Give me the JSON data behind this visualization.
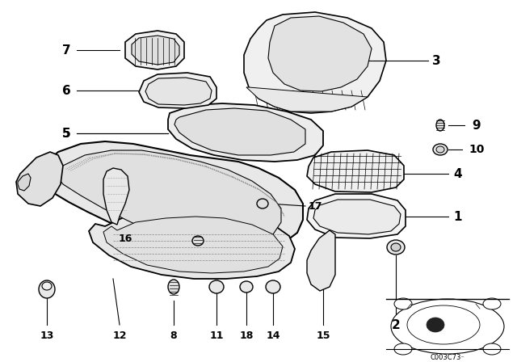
{
  "background_color": "#ffffff",
  "line_color": "#000000",
  "diagram_code_text": "C003C73⁻",
  "fig_w": 6.4,
  "fig_h": 4.48,
  "dpi": 100
}
